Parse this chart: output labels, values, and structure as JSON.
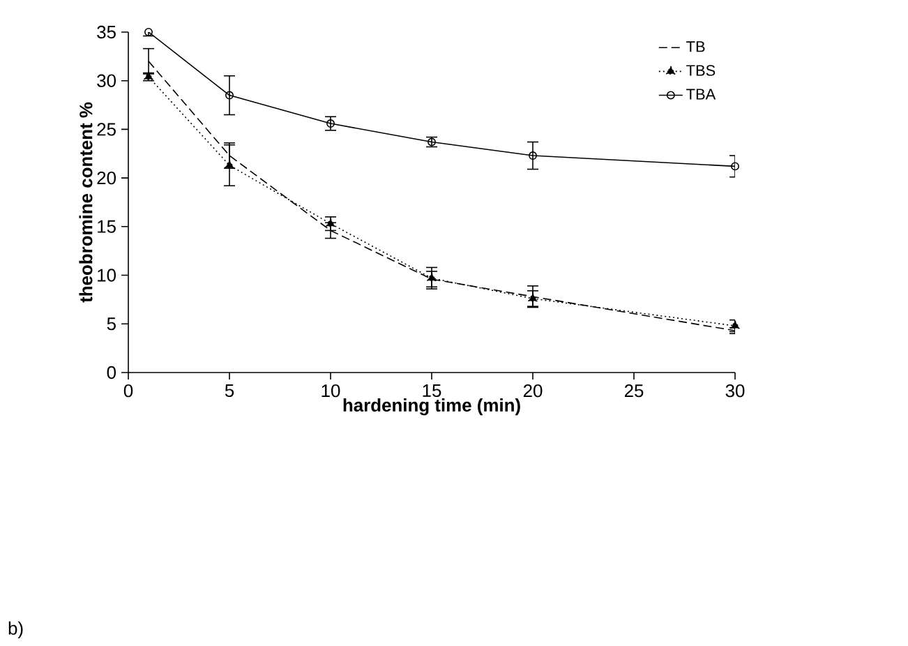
{
  "chart_data": {
    "type": "line",
    "xlabel": "hardening time (min)",
    "ylabel": "theobromine content %",
    "x": [
      1,
      5,
      10,
      15,
      20,
      30
    ],
    "series": [
      {
        "name": "TB",
        "color": "#000000",
        "line_style": "dashed",
        "marker": "none",
        "values": [
          32,
          22.3,
          14.6,
          9.6,
          7.8,
          4.3
        ],
        "errors": [
          1.3,
          1.3,
          0.8,
          0.8,
          1.1,
          0.3
        ]
      },
      {
        "name": "TBS",
        "color": "#000000",
        "line_style": "dotted",
        "marker": "triangle",
        "values": [
          30.4,
          21.3,
          15.3,
          9.7,
          7.6,
          4.8
        ],
        "errors": [
          0.4,
          2.1,
          0.7,
          1.1,
          0.8,
          0.6
        ]
      },
      {
        "name": "TBA",
        "color": "#000000",
        "line_style": "solid",
        "marker": "circle",
        "values": [
          35,
          28.5,
          25.6,
          23.7,
          22.3,
          21.2
        ],
        "errors": [
          0.4,
          2,
          0.7,
          0.5,
          1.4,
          1.1
        ]
      }
    ],
    "xlim": [
      0,
      30
    ],
    "ylim": [
      0,
      35
    ],
    "xticks": [
      0,
      5,
      10,
      15,
      20,
      25,
      30
    ],
    "yticks": [
      0,
      5,
      10,
      15,
      20,
      25,
      30,
      35
    ],
    "legend": "top right",
    "grid": false,
    "annotations": [
      "b)"
    ]
  }
}
